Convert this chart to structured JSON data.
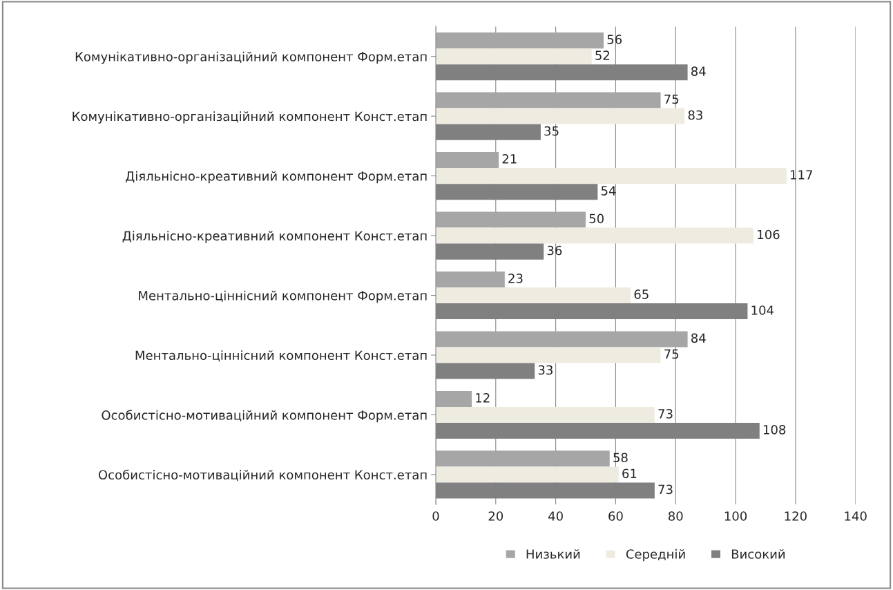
{
  "chart_data": {
    "type": "bar",
    "orientation": "horizontal",
    "categories": [
      "Комунікативно-організаційний компонент Форм.етап",
      "Комунікативно-організаційний компонент Конст.етап",
      "Діяльнісно-креативний компонент Форм.етап",
      "Діяльнісно-креативний компонент Конст.етап",
      "Ментально-ціннісний компонент Форм.етап",
      "Ментально-ціннісний компонент Конст.етап",
      "Особистісно-мотиваційний компонент Форм.етап",
      "Особистісно-мотиваційний компонент Конст.етап"
    ],
    "series": [
      {
        "name": "Низький",
        "color": "#a6a6a6",
        "values": [
          56,
          75,
          21,
          50,
          23,
          84,
          12,
          58
        ]
      },
      {
        "name": "Середній",
        "color": "#eeece1",
        "values": [
          52,
          83,
          117,
          106,
          65,
          75,
          73,
          61
        ]
      },
      {
        "name": "Високий",
        "color": "#808080",
        "values": [
          84,
          35,
          54,
          36,
          104,
          33,
          108,
          73
        ]
      }
    ],
    "xlim": [
      0,
      140
    ],
    "xticks": [
      0,
      20,
      40,
      60,
      80,
      100,
      120,
      140
    ],
    "grid": "x",
    "legend": "bottom",
    "data_labels": true
  }
}
